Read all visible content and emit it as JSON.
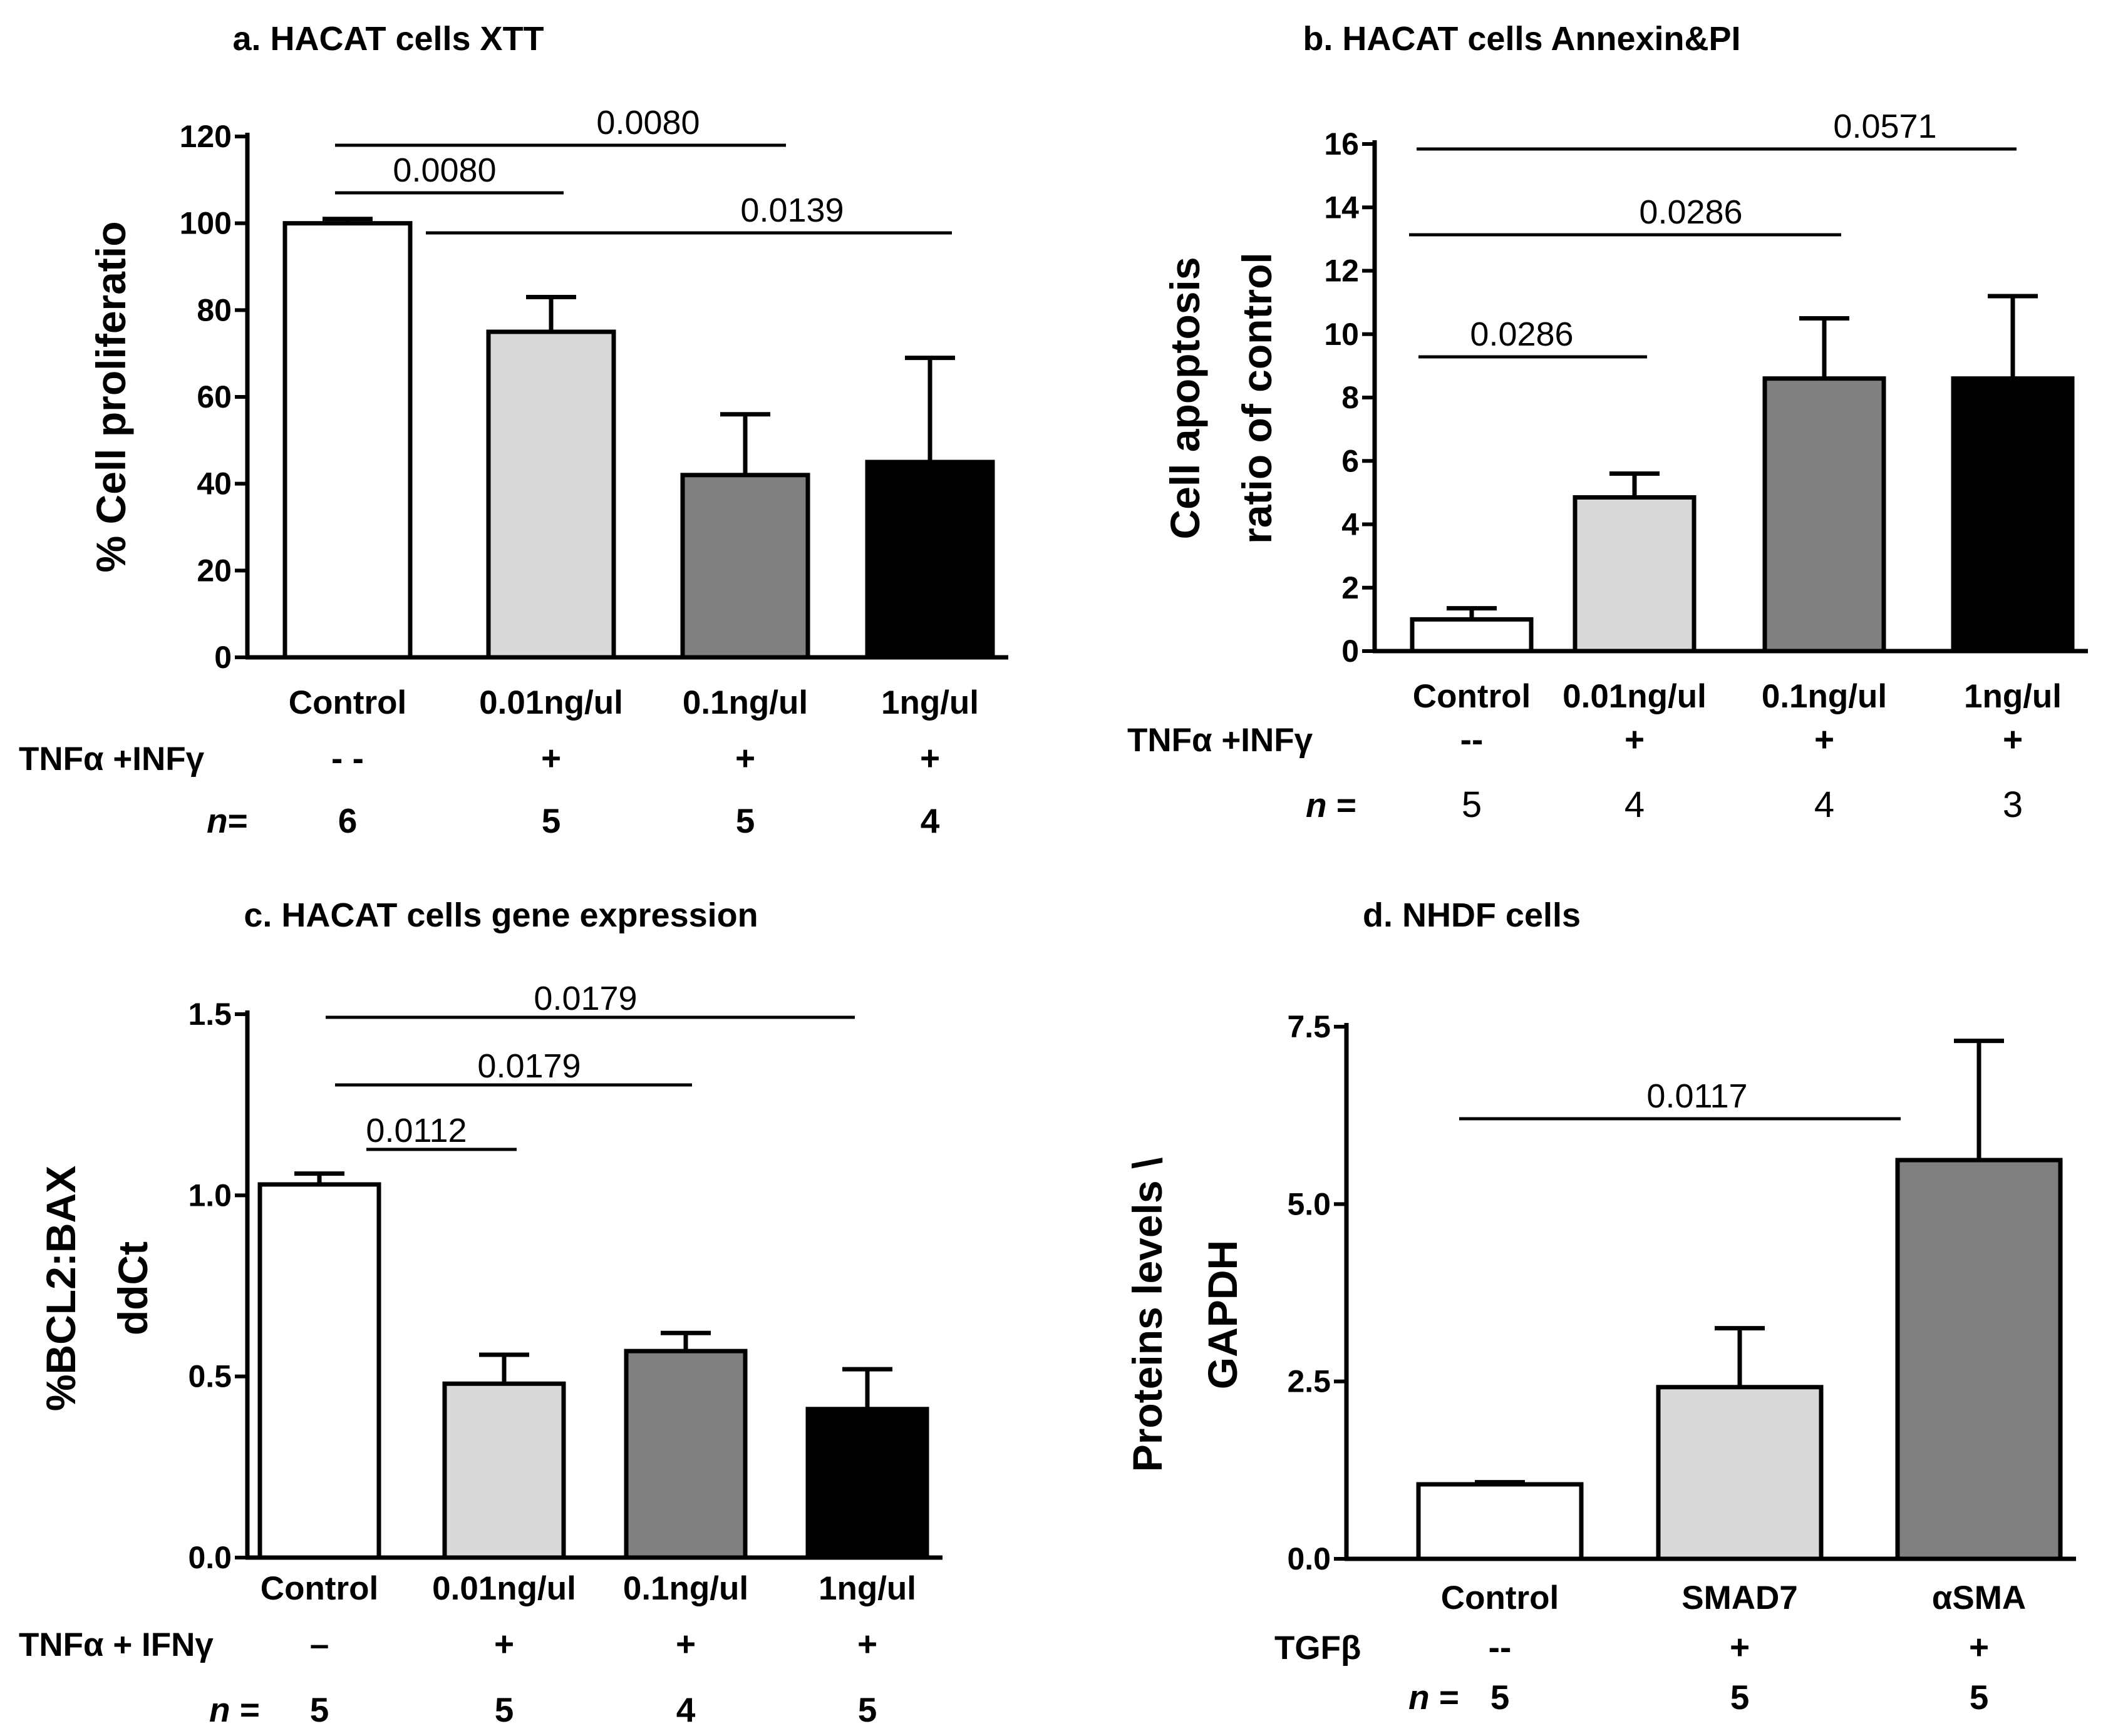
{
  "colors": {
    "series_fills": [
      "#ffffff",
      "#d9d9d9",
      "#808080",
      "#000000"
    ],
    "axis": "#000000"
  },
  "chart_data": [
    {
      "panel": "a",
      "type": "bar",
      "title": "a. HACAT cells XTT",
      "ylabel": "% Cell proliferatio",
      "ylim": [
        0,
        120
      ],
      "yticks": [
        0,
        20,
        40,
        60,
        80,
        100,
        120
      ],
      "categories": [
        "Control",
        "0.01ng/ul",
        "0.1ng/ul",
        "1ng/ul"
      ],
      "values": [
        100,
        75,
        42,
        45
      ],
      "errors": [
        1,
        8,
        14,
        24
      ],
      "treatment_label": "TNFα +INFγ",
      "treatment": [
        "- -",
        "+",
        "+",
        "+"
      ],
      "n_label": "n",
      "n_suffix": "=",
      "n": [
        "6",
        "5",
        "5",
        "4"
      ],
      "significance": [
        {
          "from": 0,
          "to": 2,
          "label": "0.0080"
        },
        {
          "from": 0,
          "to": 1,
          "label": "0.0080"
        },
        {
          "from": 0,
          "to": 3,
          "label": "0.0139"
        }
      ]
    },
    {
      "panel": "b",
      "type": "bar",
      "title": "b.  HACAT cells Annexin&PI",
      "ylabel": [
        "Cell apoptosis",
        "ratio of control"
      ],
      "ylim": [
        0,
        16
      ],
      "yticks": [
        0,
        2,
        4,
        6,
        8,
        10,
        12,
        14,
        16
      ],
      "categories": [
        "Control",
        "0.01ng/ul",
        "0.1ng/ul",
        "1ng/ul"
      ],
      "values": [
        1.0,
        4.85,
        8.6,
        8.6
      ],
      "errors": [
        0.35,
        0.75,
        1.9,
        2.6
      ],
      "treatment_label": "TNFα +INFγ",
      "treatment": [
        "--",
        "+",
        "+",
        "+"
      ],
      "n_label": "n",
      "n_suffix": "=",
      "n": [
        "5",
        "4",
        "4",
        "3"
      ],
      "significance": [
        {
          "from": 0,
          "to": 3,
          "label": "0.0571"
        },
        {
          "from": 0,
          "to": 2,
          "label": "0.0286"
        },
        {
          "from": 0,
          "to": 1,
          "label": "0.0286"
        }
      ]
    },
    {
      "panel": "c",
      "type": "bar",
      "title": "c. HACAT cells gene expression",
      "ylabel": [
        "%BCL2:BAX",
        "ddCt"
      ],
      "ylim": [
        0,
        1.5
      ],
      "yticks": [
        "0.0",
        "0.5",
        "1.0",
        "1.5"
      ],
      "categories": [
        "Control",
        "0.01ng/ul",
        "0.1ng/ul",
        "1ng/ul"
      ],
      "values": [
        1.03,
        0.48,
        0.57,
        0.41
      ],
      "errors": [
        0.03,
        0.08,
        0.05,
        0.11
      ],
      "treatment_label": "TNFα + IFNγ",
      "treatment": [
        "–",
        "+",
        "+",
        "+"
      ],
      "n_label": "n",
      "n_suffix": "=",
      "n": [
        "5",
        "5",
        "4",
        "5"
      ],
      "significance": [
        {
          "from": 0,
          "to": 3,
          "label": "0.0179"
        },
        {
          "from": 0,
          "to": 2,
          "label": "0.0179"
        },
        {
          "from": 0,
          "to": 1,
          "label": "0.0112"
        }
      ]
    },
    {
      "panel": "d",
      "type": "bar",
      "title": "d.  NHDF cells",
      "ylabel": [
        "Proteins levels \\",
        "GAPDH"
      ],
      "ylim": [
        0,
        7.5
      ],
      "yticks": [
        "0.0",
        "2.5",
        "5.0",
        "7.5"
      ],
      "categories": [
        "Control",
        "SMAD7",
        "αSMA"
      ],
      "values": [
        1.05,
        2.42,
        5.62
      ],
      "errors": [
        0.03,
        0.83,
        1.68
      ],
      "treatment_label": "TGFβ",
      "treatment": [
        "--",
        "+",
        "+"
      ],
      "n_label": "n",
      "n_suffix": "=",
      "n": [
        "5",
        "5",
        "5"
      ],
      "significance": [
        {
          "from": 0,
          "to": 2,
          "label": "0.0117"
        }
      ]
    }
  ]
}
